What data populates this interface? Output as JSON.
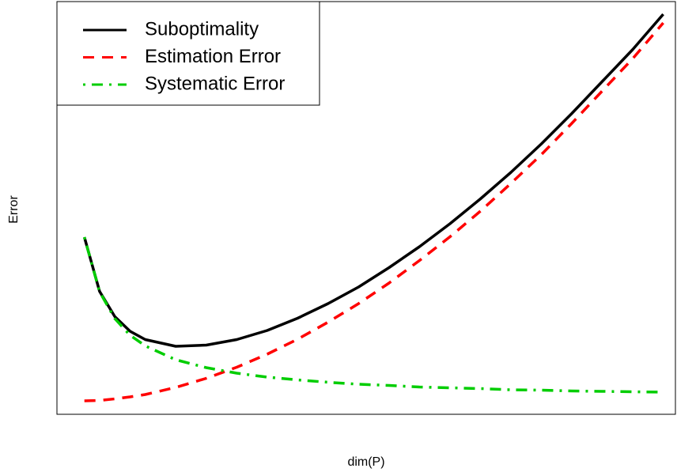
{
  "chart_data": {
    "type": "line",
    "x_label": "dim(P)",
    "y_label": "Error",
    "x": [
      1,
      1.5,
      2,
      2.5,
      3,
      4,
      5,
      6,
      7,
      8,
      9,
      10,
      11,
      12,
      13,
      14,
      15,
      16,
      17,
      18,
      19,
      20
    ],
    "xlim": [
      0.1,
      20.4
    ],
    "ylim": [
      0,
      104.4
    ],
    "legend_position": "top-left",
    "series": [
      {
        "name": "Suboptimality",
        "color": "#000000",
        "dash": "solid",
        "values": [
          44.8,
          31.1,
          24.7,
          21.0,
          18.9,
          17.2,
          17.5,
          18.9,
          21.2,
          24.3,
          28.0,
          32.2,
          37.1,
          42.4,
          48.2,
          54.5,
          61.2,
          68.4,
          76.1,
          84.2,
          92.3,
          101.2
        ]
      },
      {
        "name": "Estimation Error",
        "color": "#ff0000",
        "dash": "dashed",
        "values": [
          3.4,
          3.5,
          3.9,
          4.4,
          5.0,
          6.8,
          9.1,
          11.9,
          15.2,
          19.0,
          23.3,
          28.0,
          33.2,
          38.9,
          44.9,
          51.4,
          58.4,
          65.7,
          73.6,
          81.8,
          90.0,
          99.0
        ]
      },
      {
        "name": "Systematic Error",
        "color": "#00cd00",
        "dash": "dotdash",
        "values": [
          44.8,
          31.0,
          24.2,
          20.0,
          17.3,
          13.8,
          11.8,
          10.4,
          9.4,
          8.7,
          8.1,
          7.6,
          7.3,
          6.9,
          6.7,
          6.5,
          6.2,
          6.1,
          5.9,
          5.8,
          5.7,
          5.6
        ]
      }
    ]
  }
}
